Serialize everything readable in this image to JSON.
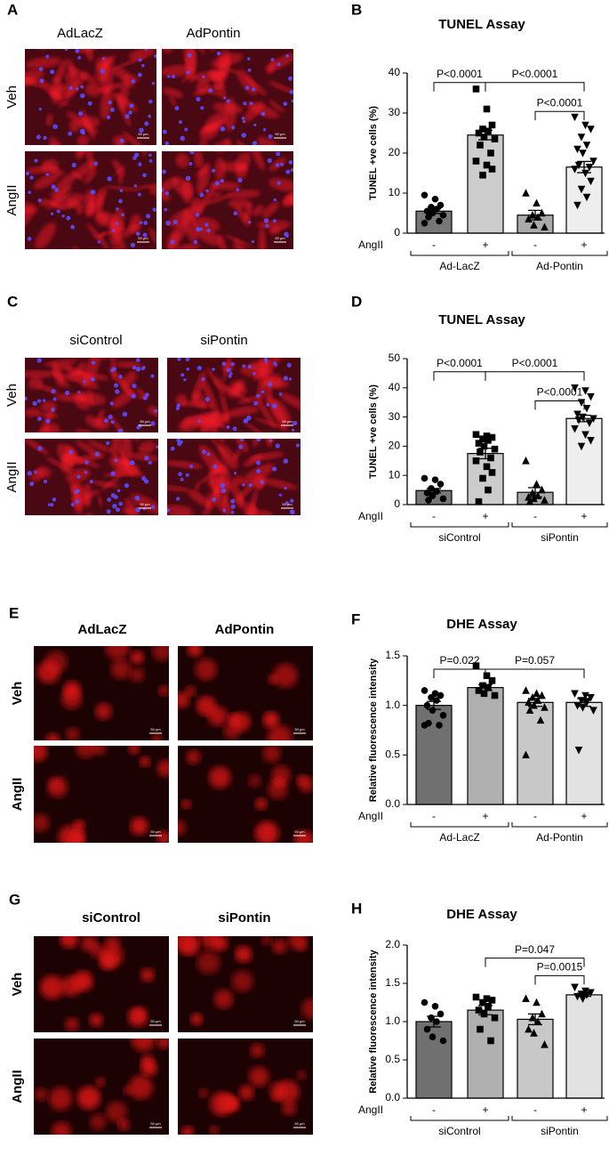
{
  "image_panels": [
    {
      "letter": "A",
      "style": "tunel",
      "columns": [
        "AdLacZ",
        "AdPontin"
      ],
      "rows": [
        "Veh",
        "AngII"
      ],
      "scale_bar": "50 µm"
    },
    {
      "letter": "C",
      "style": "tunel",
      "columns": [
        "siControl",
        "siPontin"
      ],
      "rows": [
        "Veh",
        "AngII"
      ],
      "scale_bar": "50 µm"
    },
    {
      "letter": "E",
      "style": "dhe",
      "columns": [
        "AdLacZ",
        "AdPontin"
      ],
      "rows": [
        "Veh",
        "AngII"
      ],
      "scale_bar": "50 µm"
    },
    {
      "letter": "G",
      "style": "dhe",
      "columns": [
        "siControl",
        "siPontin"
      ],
      "rows": [
        "Veh",
        "AngII"
      ],
      "scale_bar": "50 µm"
    }
  ],
  "chart_data": [
    {
      "type": "bar",
      "panel": "B",
      "title": "TUNEL Assay",
      "ylabel": "TUNEL +ve cells (%)",
      "ylim": [
        0,
        40
      ],
      "yticks": [
        0,
        10,
        20,
        30,
        40
      ],
      "treatment_label": "AngII",
      "categories": [
        "-",
        "+",
        "-",
        "+"
      ],
      "groups": [
        "Ad-LacZ",
        "Ad-Pontin"
      ],
      "colors": [
        "#777777",
        "#cccccc",
        "#aaaaaa",
        "#eeeeee"
      ],
      "markers": [
        "circle",
        "square",
        "triangle",
        "triangle-down"
      ],
      "values": [
        5.5,
        24.5,
        4.5,
        16.5
      ],
      "errors": [
        0.6,
        1.2,
        1.2,
        1.4
      ],
      "points": [
        [
          9.5,
          8.5,
          7,
          6.5,
          6,
          5.5,
          5,
          4.5,
          4,
          3,
          2.5
        ],
        [
          36,
          31,
          27,
          26,
          25.5,
          25,
          24,
          23.5,
          22,
          20,
          18,
          17,
          16,
          14.5
        ],
        [
          10,
          7.5,
          5,
          4.5,
          4,
          3.5,
          2,
          1.5
        ],
        [
          29,
          27,
          26,
          24,
          22,
          21,
          20,
          18,
          17,
          16.5,
          16,
          15,
          13,
          11,
          9,
          7
        ]
      ],
      "comparisons": [
        "P<0.0001",
        "P<0.0001",
        "P<0.0001"
      ]
    },
    {
      "type": "bar",
      "panel": "D",
      "title": "TUNEL Assay",
      "ylabel": "TUNEL +ve cells (%)",
      "ylim": [
        0,
        50
      ],
      "yticks": [
        0,
        10,
        20,
        30,
        40,
        50
      ],
      "treatment_label": "AngII",
      "categories": [
        "-",
        "+",
        "-",
        "+"
      ],
      "groups": [
        "siControl",
        "siPontin"
      ],
      "colors": [
        "#777777",
        "#cccccc",
        "#aaaaaa",
        "#eeeeee"
      ],
      "markers": [
        "circle",
        "square",
        "triangle",
        "triangle-down"
      ],
      "values": [
        4.8,
        17.5,
        4.2,
        29.5
      ],
      "errors": [
        0.7,
        1.8,
        1.6,
        1.1
      ],
      "points": [
        [
          9,
          8.5,
          7,
          5.5,
          4.5,
          4,
          3,
          2,
          1.5
        ],
        [
          24,
          23.5,
          23,
          22.5,
          22,
          21,
          20,
          19,
          18,
          16,
          15,
          13,
          11,
          9,
          5,
          1
        ],
        [
          15,
          7,
          5,
          4,
          3,
          2.5,
          2,
          1.5,
          1
        ],
        [
          40,
          39,
          37,
          35,
          33,
          31,
          30,
          29.5,
          29,
          28,
          26,
          24,
          22,
          20
        ]
      ],
      "comparisons": [
        "P<0.0001",
        "P<0.0001",
        "P<0.0001"
      ]
    },
    {
      "type": "bar",
      "panel": "F",
      "title": "DHE Assay",
      "ylabel": "Relative fluorescence intensity",
      "ylim": [
        0,
        1.5
      ],
      "yticks": [
        {
          "value": 0,
          "label": "0.0"
        },
        0.5,
        {
          "value": 1,
          "label": "1.0"
        },
        1.5
      ],
      "treatment_label": "AngII",
      "categories": [
        "-",
        "+",
        "-",
        "+"
      ],
      "groups": [
        "Ad-LacZ",
        "Ad-Pontin"
      ],
      "colors": [
        "#707070",
        "#b0b0b0",
        "#c8c8c8",
        "#e2e2e2"
      ],
      "markers": [
        "circle",
        "square",
        "triangle",
        "triangle-down"
      ],
      "values": [
        1.0,
        1.18,
        1.03,
        1.03
      ],
      "errors": [
        0.04,
        0.03,
        0.04,
        0.04
      ],
      "points": [
        [
          1.15,
          1.12,
          1.1,
          1.08,
          1.05,
          1.0,
          0.95,
          0.9,
          0.82,
          0.8,
          0.8
        ],
        [
          1.4,
          1.3,
          1.25,
          1.2,
          1.18,
          1.15,
          1.12,
          1.1
        ],
        [
          1.15,
          1.12,
          1.1,
          1.08,
          1.05,
          1.03,
          1.0,
          0.98,
          0.95,
          0.85,
          0.5
        ],
        [
          1.12,
          1.1,
          1.08,
          1.05,
          1.03,
          1.0,
          0.98,
          0.95,
          0.55
        ]
      ],
      "comparisons": [
        "P=0.022",
        "P=0.057"
      ]
    },
    {
      "type": "bar",
      "panel": "H",
      "title": "DHE Assay",
      "ylabel": "Relative fluorescence intensity",
      "ylim": [
        0,
        2
      ],
      "yticks": [
        {
          "value": 0,
          "label": "0.0"
        },
        0.5,
        {
          "value": 1,
          "label": "1.0"
        },
        1.5,
        {
          "value": 2,
          "label": "2.0"
        }
      ],
      "treatment_label": "AngII",
      "categories": [
        "-",
        "+",
        "-",
        "+"
      ],
      "groups": [
        "siControl",
        "siPontin"
      ],
      "colors": [
        "#707070",
        "#b0b0b0",
        "#c8c8c8",
        "#e2e2e2"
      ],
      "markers": [
        "circle",
        "square",
        "triangle",
        "triangle-down"
      ],
      "values": [
        1.0,
        1.15,
        1.03,
        1.35
      ],
      "errors": [
        0.07,
        0.06,
        0.07,
        0.02
      ],
      "points": [
        [
          1.25,
          1.2,
          1.1,
          1.05,
          1.0,
          0.9,
          0.8,
          0.75
        ],
        [
          1.32,
          1.3,
          1.28,
          1.25,
          1.2,
          1.15,
          1.1,
          1.05,
          0.9,
          0.75
        ],
        [
          1.3,
          1.25,
          1.1,
          1.05,
          1.0,
          0.9,
          0.85,
          0.7
        ],
        [
          1.45,
          1.4,
          1.38,
          1.36,
          1.35,
          1.33,
          1.3
        ]
      ],
      "comparisons": [
        "P=0.047",
        "P=0.0015"
      ]
    }
  ]
}
